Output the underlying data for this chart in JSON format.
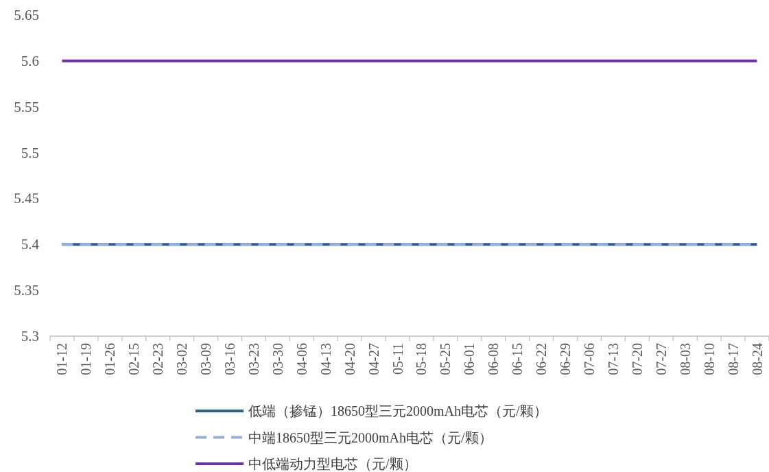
{
  "chart_data": {
    "type": "line",
    "categories": [
      "01-12",
      "01-19",
      "01-26",
      "02-15",
      "02-23",
      "03-02",
      "03-09",
      "03-16",
      "03-23",
      "03-30",
      "04-06",
      "04-13",
      "04-20",
      "04-27",
      "05-11",
      "05-18",
      "05-25",
      "06-01",
      "06-08",
      "06-15",
      "06-22",
      "06-29",
      "07-06",
      "07-13",
      "07-20",
      "07-27",
      "08-03",
      "08-10",
      "08-17",
      "08-24"
    ],
    "series": [
      {
        "name": "低端（掺锰）18650型三元2000mAh电芯（元/颗）",
        "color": "#2f5d8c",
        "line_style": "solid",
        "values": [
          5.4,
          5.4,
          5.4,
          5.4,
          5.4,
          5.4,
          5.4,
          5.4,
          5.4,
          5.4,
          5.4,
          5.4,
          5.4,
          5.4,
          5.4,
          5.4,
          5.4,
          5.4,
          5.4,
          5.4,
          5.4,
          5.4,
          5.4,
          5.4,
          5.4,
          5.4,
          5.4,
          5.4,
          5.4,
          5.4
        ]
      },
      {
        "name": "中端18650型三元2000mAh电芯（元/颗）",
        "color": "#93b1d9",
        "line_style": "dashed",
        "values": [
          5.4,
          5.4,
          5.4,
          5.4,
          5.4,
          5.4,
          5.4,
          5.4,
          5.4,
          5.4,
          5.4,
          5.4,
          5.4,
          5.4,
          5.4,
          5.4,
          5.4,
          5.4,
          5.4,
          5.4,
          5.4,
          5.4,
          5.4,
          5.4,
          5.4,
          5.4,
          5.4,
          5.4,
          5.4,
          5.4
        ]
      },
      {
        "name": "中低端动力型电芯（元/颗）",
        "color": "#7030a0",
        "line_style": "solid",
        "values": [
          5.6,
          5.6,
          5.6,
          5.6,
          5.6,
          5.6,
          5.6,
          5.6,
          5.6,
          5.6,
          5.6,
          5.6,
          5.6,
          5.6,
          5.6,
          5.6,
          5.6,
          5.6,
          5.6,
          5.6,
          5.6,
          5.6,
          5.6,
          5.6,
          5.6,
          5.6,
          5.6,
          5.6,
          5.6,
          5.6
        ]
      }
    ],
    "ylim": [
      5.3,
      5.65
    ],
    "yticks": [
      5.3,
      5.35,
      5.4,
      5.45,
      5.5,
      5.55,
      5.6,
      5.65
    ],
    "legend": "bottom"
  }
}
